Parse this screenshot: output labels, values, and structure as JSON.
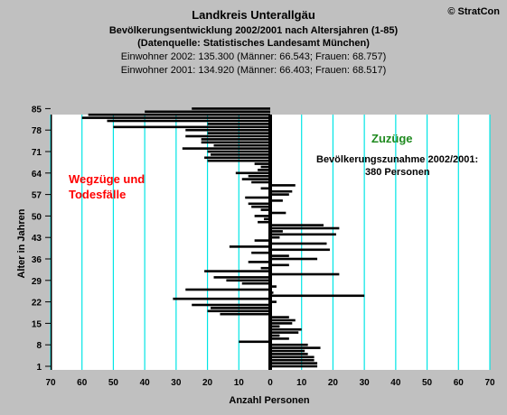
{
  "header": {
    "title": "Landkreis Unterallgäu",
    "subtitle": "Bevölkerungsentwicklung 2002/2001 nach Altersjahren (1-85)",
    "source": "(Datenquelle: Statistisches Landesamt München)",
    "pop_2002": "Einwohner 2002: 135.300  (Männer: 66.543; Frauen: 68.757)",
    "pop_2001": "Einwohner 2001: 134.920  (Männer: 66.403; Frauen: 68.517)"
  },
  "brand": "© StratCon",
  "annotations": {
    "zuzuege": "Zuzüge",
    "wegzuege_line1": "Wegzüge und",
    "wegzuege_line2": "Todesfälle",
    "zunahme_line1": "Bevölkerungszunahme 2002/2001:",
    "zunahme_line2": "380 Personen"
  },
  "colors": {
    "background": "#c0c0c0",
    "plot_background": "#ffffff",
    "gridlines": "#00e5e5",
    "bars": "#000000",
    "zuzuege_text": "#1f8a1f",
    "wegzuege_text": "#ff0000"
  },
  "chart_data": {
    "type": "bar",
    "orientation": "horizontal",
    "xlabel": "Anzahl Personen",
    "ylabel": "Alter in Jahren",
    "xlim": [
      -70,
      70
    ],
    "ylim": [
      1,
      85
    ],
    "x_ticks": [
      "70",
      "60",
      "50",
      "40",
      "30",
      "20",
      "10",
      "0",
      "10",
      "20",
      "30",
      "40",
      "50",
      "60",
      "70"
    ],
    "y_ticks": [
      1,
      8,
      15,
      22,
      29,
      36,
      43,
      50,
      57,
      64,
      71,
      78,
      85
    ],
    "grid": "vertical",
    "ages": [
      1,
      2,
      3,
      4,
      5,
      6,
      7,
      8,
      9,
      10,
      11,
      12,
      13,
      14,
      15,
      16,
      17,
      18,
      19,
      20,
      21,
      22,
      23,
      24,
      25,
      26,
      27,
      28,
      29,
      30,
      31,
      32,
      33,
      34,
      35,
      36,
      37,
      38,
      39,
      40,
      41,
      42,
      43,
      44,
      45,
      46,
      47,
      48,
      49,
      50,
      51,
      52,
      53,
      54,
      55,
      56,
      57,
      58,
      59,
      60,
      61,
      62,
      63,
      64,
      65,
      66,
      67,
      68,
      69,
      70,
      71,
      72,
      73,
      74,
      75,
      76,
      77,
      78,
      79,
      80,
      81,
      82,
      83,
      84,
      85
    ],
    "values": [
      15,
      15,
      14,
      14,
      12,
      11,
      16,
      12,
      -10,
      6,
      3,
      9,
      10,
      3,
      7,
      8,
      6,
      -16,
      -20,
      -19,
      -25,
      2,
      -31,
      30,
      1,
      -27,
      2,
      -9,
      -14,
      -18,
      22,
      -21,
      -3,
      6,
      -7,
      15,
      6,
      -6,
      19,
      -13,
      18,
      -5,
      3,
      21,
      4,
      22,
      17,
      -4,
      -2,
      -5,
      5,
      -3,
      -6,
      -7,
      4,
      -8,
      6,
      7,
      -3,
      8,
      -6,
      -9,
      -7,
      -11,
      -4,
      -3,
      -5,
      -20,
      -21,
      -19,
      -20,
      -28,
      -18,
      -22,
      -22,
      -27,
      -20,
      -27,
      -50,
      -20,
      -52,
      -60,
      -58,
      -40,
      -25
    ]
  }
}
